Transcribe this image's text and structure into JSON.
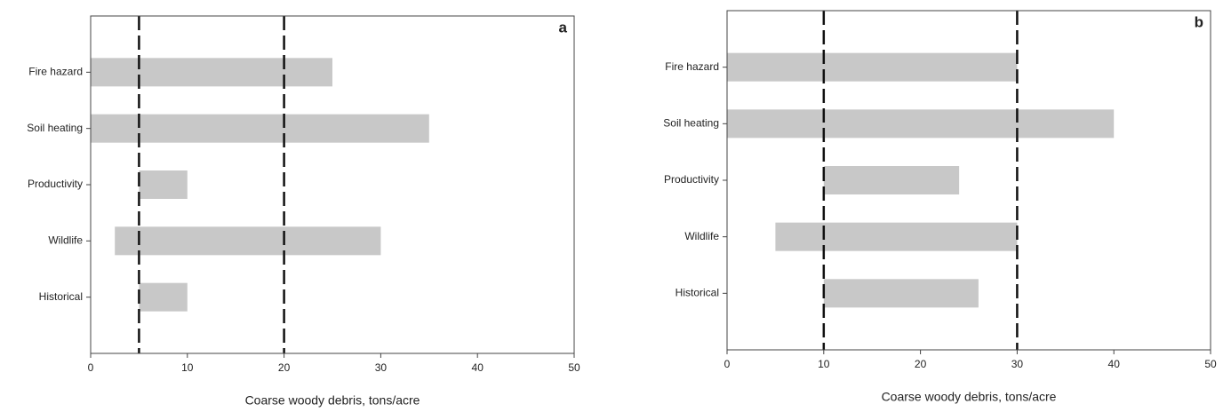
{
  "chart_data": [
    {
      "type": "range_bar",
      "panel_label": "a",
      "xlabel": "Coarse woody debris, tons/acre",
      "categories": [
        "Fire hazard",
        "Soil heating",
        "Productivity",
        "Wildlife",
        "Historical"
      ],
      "low": [
        0,
        0,
        5,
        2.5,
        5
      ],
      "high": [
        25,
        35,
        10,
        30,
        10
      ],
      "color": "#c8c8c8",
      "xlim": [
        0,
        50
      ],
      "xticks": [
        0,
        10,
        20,
        30,
        40,
        50
      ],
      "reference_lines": [
        5,
        20
      ]
    },
    {
      "type": "range_bar",
      "panel_label": "b",
      "xlabel": "Coarse woody debris, tons/acre",
      "categories": [
        "Fire hazard",
        "Soil heating",
        "Productivity",
        "Wildlife",
        "Historical"
      ],
      "low": [
        0,
        0,
        10,
        5,
        10
      ],
      "high": [
        30,
        40,
        24,
        30,
        26
      ],
      "color": "#c8c8c8",
      "xlim": [
        0,
        50
      ],
      "xticks": [
        0,
        10,
        20,
        30,
        40,
        50
      ],
      "reference_lines": [
        10,
        30
      ]
    }
  ]
}
